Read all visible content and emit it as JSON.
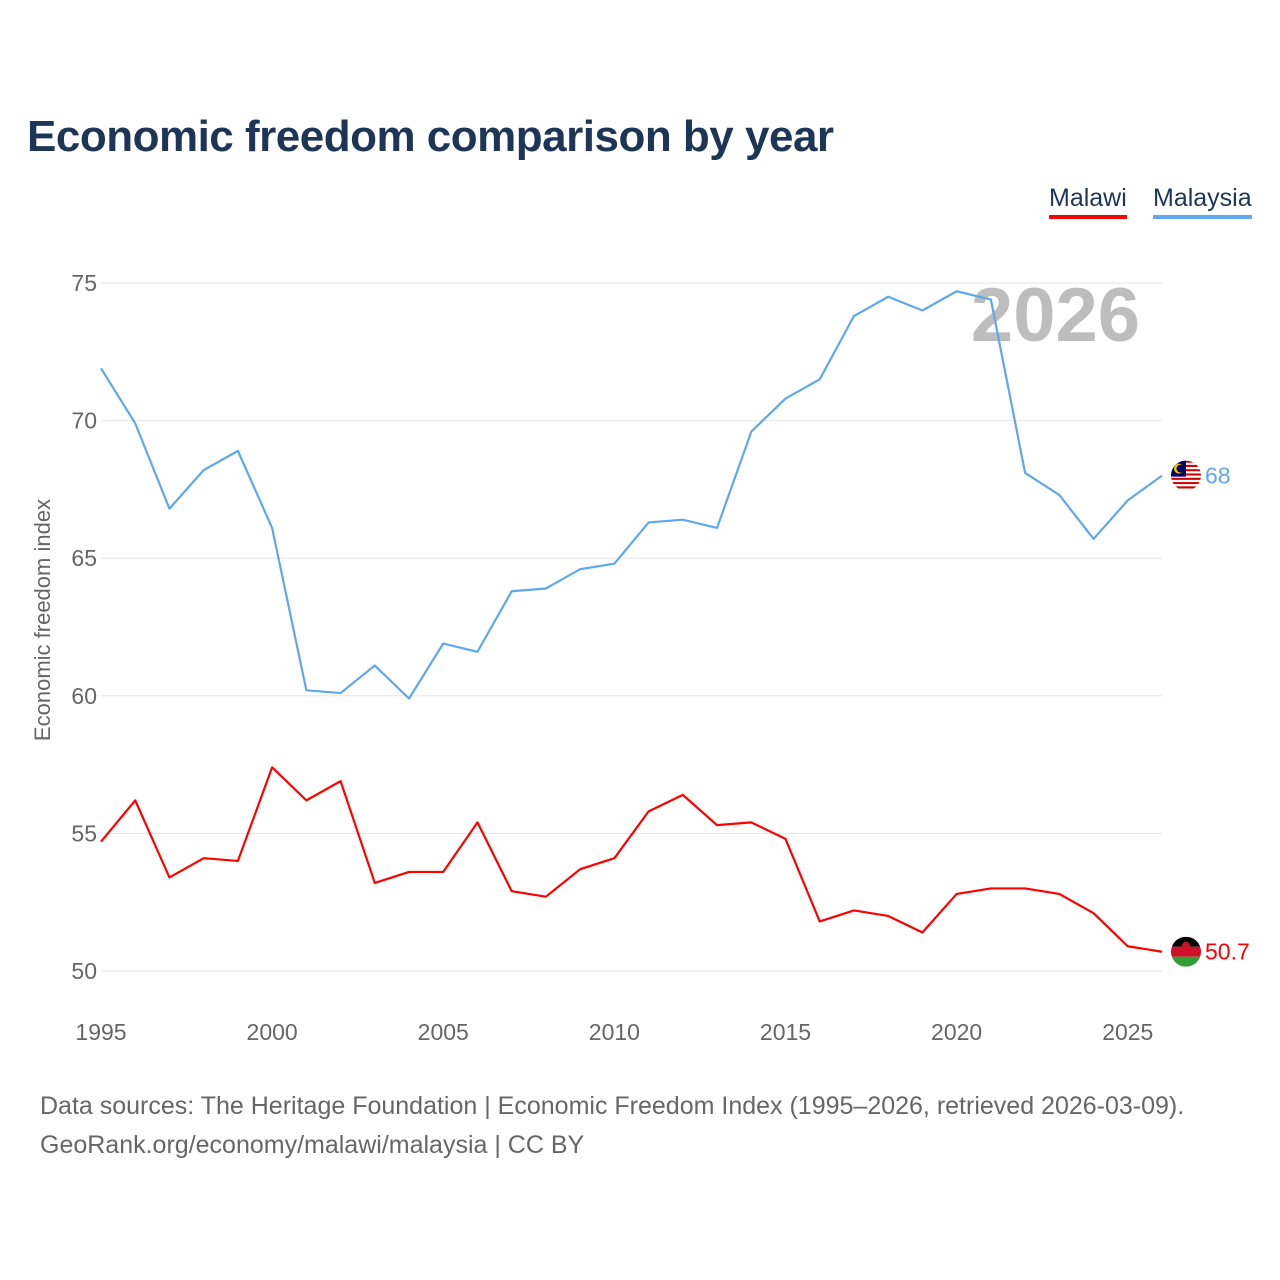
{
  "title": "Economic freedom comparison by year",
  "legend": [
    {
      "name": "Malawi",
      "color": "#ff0000"
    },
    {
      "name": "Malaysia",
      "color": "#5fa8ec"
    }
  ],
  "footer": {
    "source": "Data sources: The Heritage Foundation | Economic Freedom Index (1995–2026, retrieved 2026-03-09).",
    "credit": "GeoRank.org/economy/malawi/malaysia | CC BY"
  },
  "chart_data": {
    "type": "line",
    "title": "Economic freedom comparison by year",
    "xlabel": "",
    "ylabel": "Economic freedom index",
    "watermark_year": "2026",
    "xlim": [
      1995,
      2026
    ],
    "ylim": [
      50,
      75
    ],
    "xticks": [
      1995,
      2000,
      2005,
      2010,
      2015,
      2020,
      2025
    ],
    "yticks": [
      50,
      55,
      60,
      65,
      70,
      75
    ],
    "grid": true,
    "legend_position": "top-right",
    "x": [
      1995,
      1996,
      1997,
      1998,
      1999,
      2000,
      2001,
      2002,
      2003,
      2004,
      2005,
      2006,
      2007,
      2008,
      2009,
      2010,
      2011,
      2012,
      2013,
      2014,
      2015,
      2016,
      2017,
      2018,
      2019,
      2020,
      2021,
      2022,
      2023,
      2024,
      2025,
      2026
    ],
    "series": [
      {
        "name": "Malaysia",
        "color": "#5fa8ec",
        "end_label": "68",
        "values": [
          71.9,
          69.9,
          66.8,
          68.2,
          68.9,
          66.1,
          60.2,
          60.1,
          61.1,
          59.9,
          61.9,
          61.6,
          63.8,
          63.9,
          64.6,
          64.8,
          66.3,
          66.4,
          66.1,
          69.6,
          70.8,
          71.5,
          73.8,
          74.5,
          74.0,
          74.7,
          74.4,
          68.1,
          67.3,
          65.7,
          67.1,
          68.0
        ]
      },
      {
        "name": "Malawi",
        "color": "#ff0000",
        "end_label": "50.7",
        "values": [
          54.7,
          56.2,
          53.4,
          54.1,
          54.0,
          57.4,
          56.2,
          56.9,
          53.2,
          53.6,
          53.6,
          55.4,
          52.9,
          52.7,
          53.7,
          54.1,
          55.8,
          56.4,
          55.3,
          55.4,
          54.8,
          51.8,
          52.2,
          52.0,
          51.4,
          52.8,
          53.0,
          53.0,
          52.8,
          52.1,
          50.9,
          50.7
        ]
      }
    ]
  }
}
